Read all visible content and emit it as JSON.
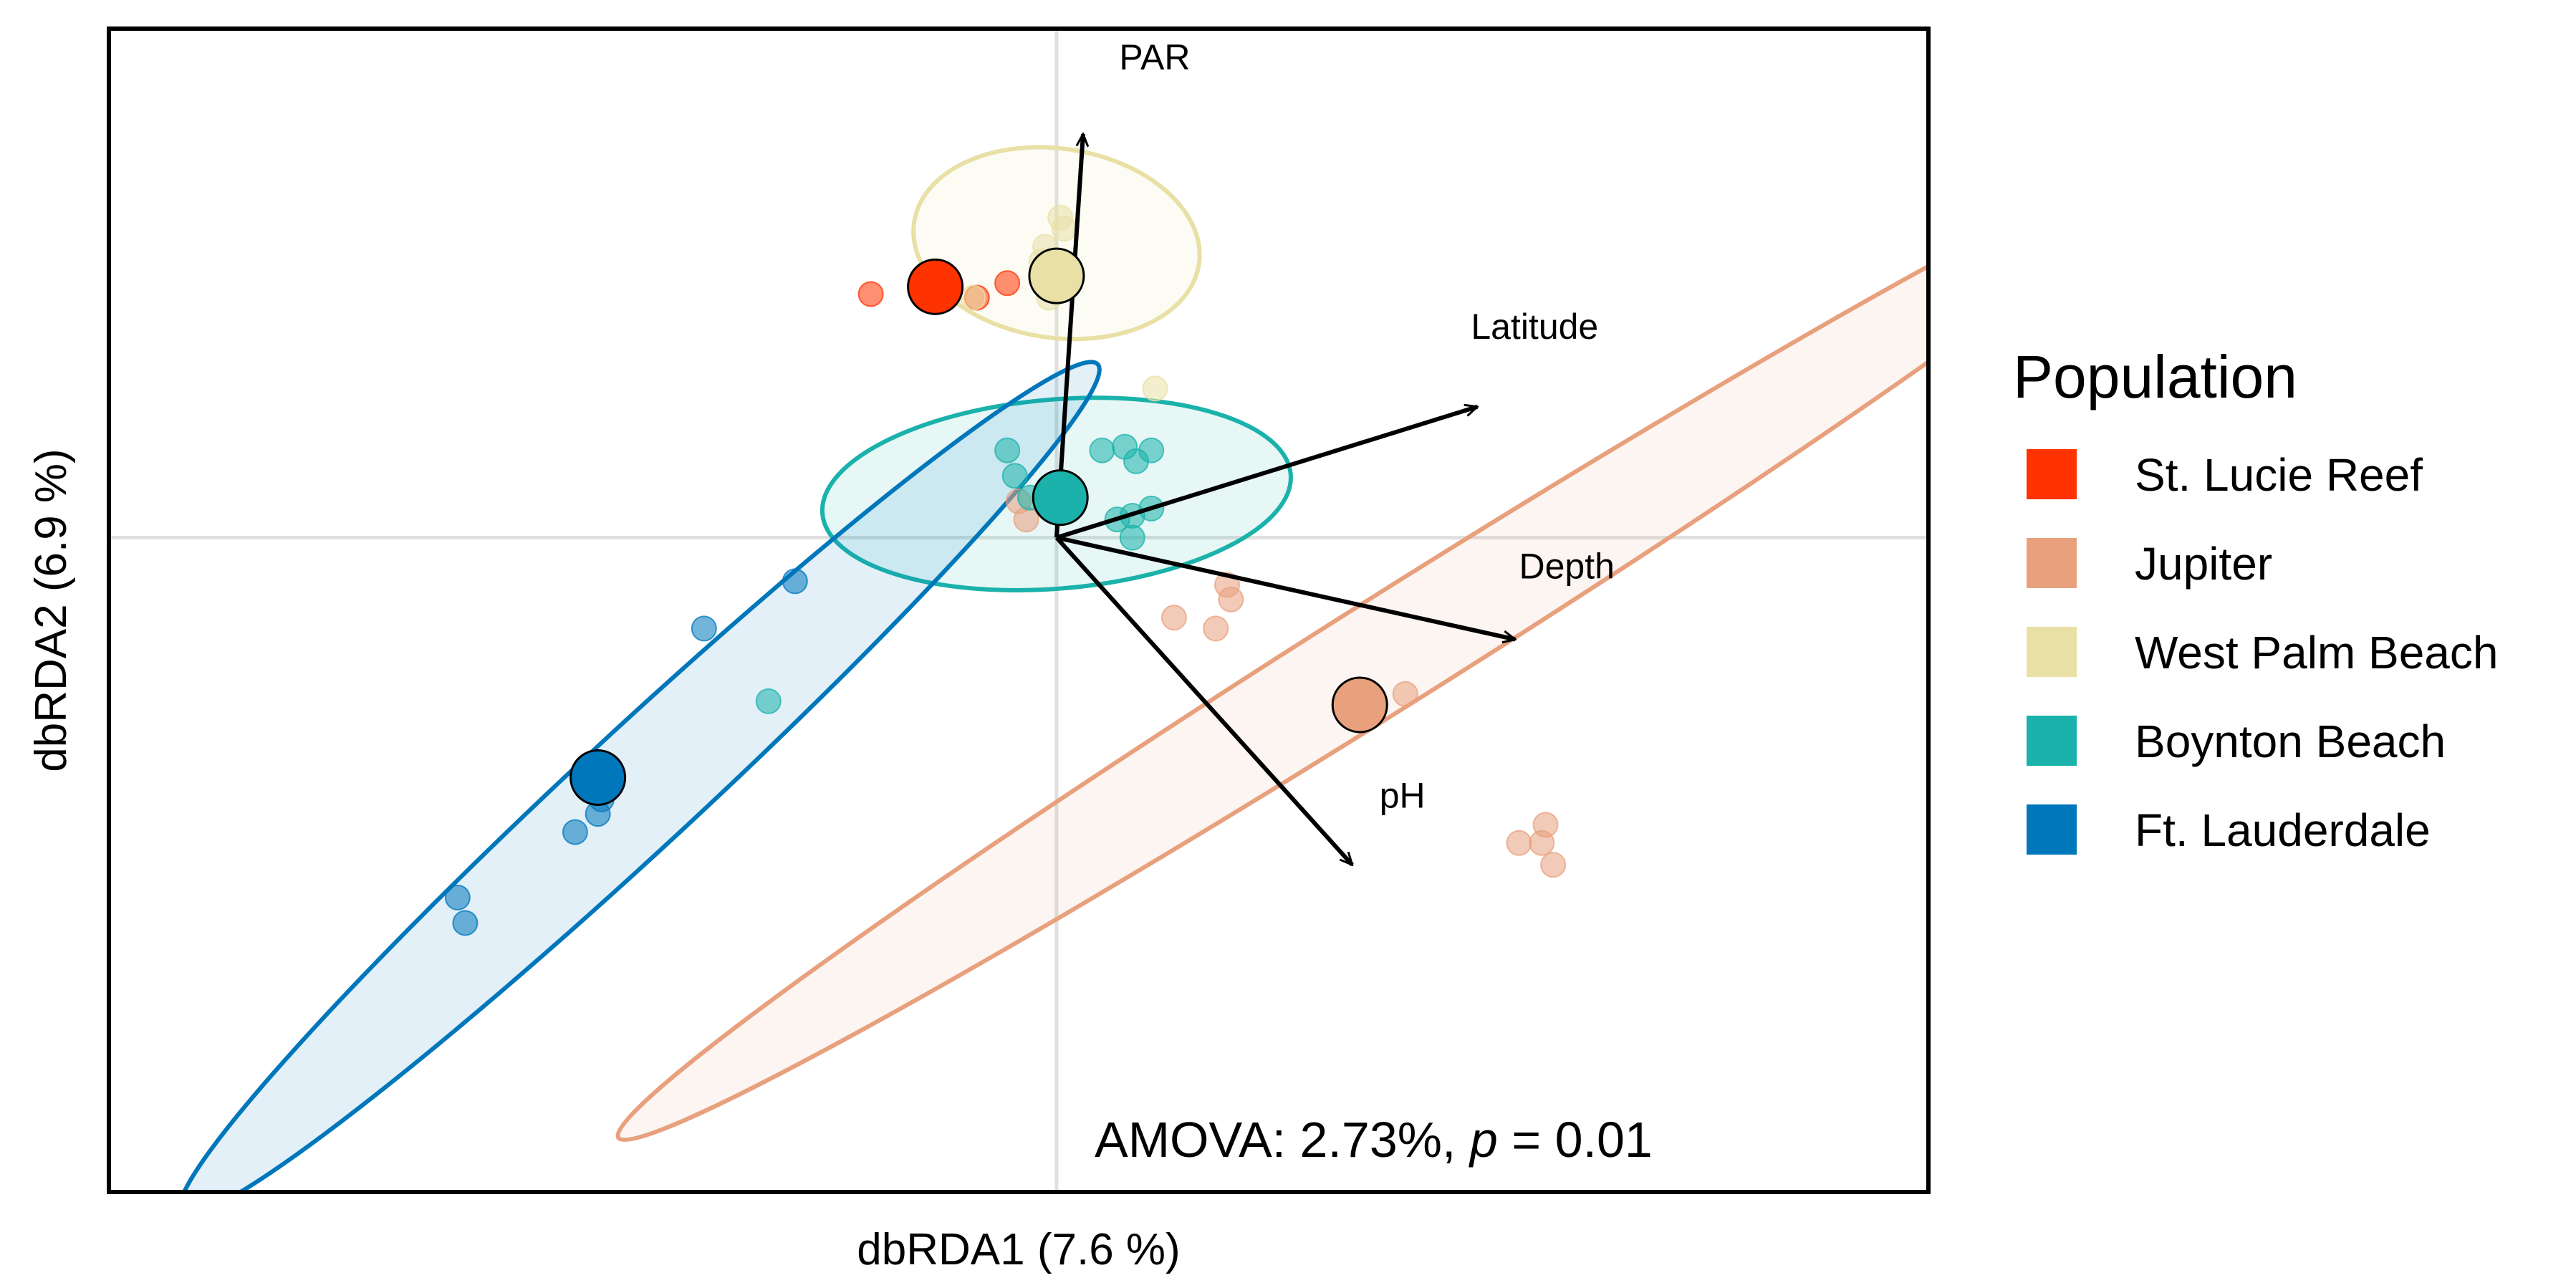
{
  "chart_data": {
    "type": "scatter",
    "title": "",
    "xlabel": "dbRDA1 (7.6 %)",
    "ylabel": "dbRDA2 (6.9 %)",
    "xlim": [
      -2.5,
      2.3
    ],
    "ylim": [
      -1.8,
      1.4
    ],
    "grid": false,
    "reference_lines": {
      "x": 0,
      "y": 0,
      "color": "#e0e0e0"
    },
    "legend": {
      "title": "Population",
      "position": "right"
    },
    "annotation": {
      "prefix": "AMOVA: 2.73%, ",
      "italic": "p",
      "suffix": "  =  0.01"
    },
    "series": [
      {
        "name": "St. Lucie Reef",
        "color": "#ff3300",
        "centroid": [
          -0.32,
          0.69
        ],
        "points": [
          [
            -0.49,
            0.67
          ],
          [
            -0.13,
            0.7
          ],
          [
            -0.21,
            0.66
          ]
        ],
        "ellipse": null
      },
      {
        "name": "Jupiter",
        "color": "#e8a07d",
        "centroid": [
          0.8,
          -0.46
        ],
        "points": [
          [
            -0.1,
            0.1
          ],
          [
            -0.08,
            0.05
          ],
          [
            0.31,
            -0.22
          ],
          [
            0.45,
            -0.13
          ],
          [
            0.46,
            -0.17
          ],
          [
            0.42,
            -0.25
          ],
          [
            0.92,
            -0.43
          ],
          [
            1.22,
            -0.84
          ],
          [
            1.29,
            -0.79
          ],
          [
            1.28,
            -0.84
          ],
          [
            1.31,
            -0.9
          ]
        ],
        "ellipse": {
          "cx": 0.9,
          "cy": -0.3,
          "rx": 2.46,
          "ry": 0.15,
          "angle_deg": 33.3
        }
      },
      {
        "name": "West Palm Beach",
        "color": "#e8e0a5",
        "centroid": [
          0.0,
          0.72
        ],
        "points": [
          [
            -0.22,
            0.66
          ],
          [
            0.02,
            0.85
          ],
          [
            0.01,
            0.88
          ],
          [
            -0.03,
            0.8
          ],
          [
            -0.04,
            0.76
          ],
          [
            -0.02,
            0.66
          ],
          [
            0.26,
            0.41
          ]
        ],
        "ellipse": {
          "cx": 0.0,
          "cy": 0.81,
          "rx": 0.26,
          "ry": 0.38,
          "angle_deg": 82
        }
      },
      {
        "name": "Boynton Beach",
        "color": "#1ab2aa",
        "centroid": [
          0.01,
          0.11
        ],
        "points": [
          [
            -0.13,
            0.24
          ],
          [
            -0.11,
            0.17
          ],
          [
            -0.07,
            0.11
          ],
          [
            -0.02,
            0.12
          ],
          [
            0.12,
            0.24
          ],
          [
            0.18,
            0.25
          ],
          [
            0.21,
            0.21
          ],
          [
            0.25,
            0.24
          ],
          [
            0.2,
            0.06
          ],
          [
            0.25,
            0.08
          ],
          [
            0.16,
            0.05
          ],
          [
            0.2,
            0.0
          ],
          [
            -0.76,
            -0.45
          ]
        ],
        "ellipse": {
          "cx": 0.0,
          "cy": 0.12,
          "rx": 0.62,
          "ry": 0.26,
          "angle_deg": 5
        }
      },
      {
        "name": "Ft. Lauderdale",
        "color": "#0077bb",
        "centroid": [
          -1.21,
          -0.66
        ],
        "points": [
          [
            -1.2,
            -0.72
          ],
          [
            -1.21,
            -0.76
          ],
          [
            -1.27,
            -0.81
          ],
          [
            -1.58,
            -0.99
          ],
          [
            -1.56,
            -1.06
          ],
          [
            -0.93,
            -0.25
          ],
          [
            -0.69,
            -0.12
          ]
        ],
        "ellipse": {
          "cx": -1.1,
          "cy": -0.69,
          "rx": 1.68,
          "ry": 0.16,
          "angle_deg": 44
        }
      }
    ],
    "vectors": [
      {
        "name": "PAR",
        "x": 0.07,
        "y": 1.11
      },
      {
        "name": "Latitude",
        "x": 1.11,
        "y": 0.36
      },
      {
        "name": "Depth",
        "x": 1.21,
        "y": -0.28
      },
      {
        "name": "pH",
        "x": 0.78,
        "y": -0.9
      }
    ]
  }
}
